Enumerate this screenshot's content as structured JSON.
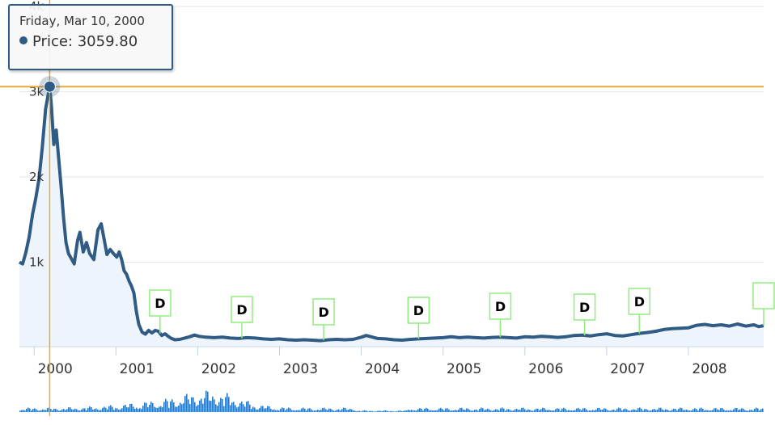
{
  "colors": {
    "line": "#2f5b85",
    "area": "#eef4fb",
    "crosshair": "#e6a93a",
    "flag_border": "#90ed7d",
    "volume": "#2b78c2",
    "grid": "#e6e6e6"
  },
  "tooltip": {
    "date": "Friday, Mar 10, 2000",
    "series_name": "Price",
    "value": "3059.80",
    "separator": ":"
  },
  "chart_data": {
    "type": "line",
    "title": "",
    "series": [
      {
        "name": "Price",
        "x_units": "year",
        "points": [
          [
            1999.82,
            1000
          ],
          [
            1999.86,
            980
          ],
          [
            1999.9,
            1120
          ],
          [
            1999.94,
            1300
          ],
          [
            1999.98,
            1560
          ],
          [
            2000.02,
            1750
          ],
          [
            2000.06,
            1980
          ],
          [
            2000.1,
            2350
          ],
          [
            2000.14,
            2800
          ],
          [
            2000.19,
            3059.8
          ],
          [
            2000.21,
            2850
          ],
          [
            2000.24,
            2380
          ],
          [
            2000.27,
            2550
          ],
          [
            2000.3,
            2220
          ],
          [
            2000.33,
            1880
          ],
          [
            2000.36,
            1520
          ],
          [
            2000.39,
            1230
          ],
          [
            2000.42,
            1100
          ],
          [
            2000.45,
            1050
          ],
          [
            2000.49,
            980
          ],
          [
            2000.53,
            1250
          ],
          [
            2000.56,
            1350
          ],
          [
            2000.6,
            1120
          ],
          [
            2000.64,
            1230
          ],
          [
            2000.68,
            1100
          ],
          [
            2000.73,
            1030
          ],
          [
            2000.78,
            1380
          ],
          [
            2000.82,
            1450
          ],
          [
            2000.86,
            1250
          ],
          [
            2000.89,
            1090
          ],
          [
            2000.93,
            1150
          ],
          [
            2000.97,
            1100
          ],
          [
            2001.01,
            1060
          ],
          [
            2001.04,
            1120
          ],
          [
            2001.07,
            1030
          ],
          [
            2001.1,
            900
          ],
          [
            2001.13,
            860
          ],
          [
            2001.16,
            780
          ],
          [
            2001.19,
            720
          ],
          [
            2001.22,
            640
          ],
          [
            2001.25,
            420
          ],
          [
            2001.28,
            270
          ],
          [
            2001.32,
            180
          ],
          [
            2001.36,
            155
          ],
          [
            2001.4,
            200
          ],
          [
            2001.44,
            170
          ],
          [
            2001.48,
            200
          ],
          [
            2001.52,
            190
          ],
          [
            2001.56,
            140
          ],
          [
            2001.6,
            160
          ],
          [
            2001.64,
            130
          ],
          [
            2001.68,
            105
          ],
          [
            2001.72,
            90
          ],
          [
            2001.78,
            95
          ],
          [
            2001.84,
            110
          ],
          [
            2001.9,
            125
          ],
          [
            2001.96,
            145
          ],
          [
            2002.02,
            130
          ],
          [
            2002.1,
            120
          ],
          [
            2002.2,
            115
          ],
          [
            2002.3,
            120
          ],
          [
            2002.4,
            110
          ],
          [
            2002.5,
            105
          ],
          [
            2002.6,
            115
          ],
          [
            2002.7,
            110
          ],
          [
            2002.8,
            100
          ],
          [
            2002.9,
            95
          ],
          [
            2003.0,
            100
          ],
          [
            2003.1,
            90
          ],
          [
            2003.2,
            85
          ],
          [
            2003.3,
            90
          ],
          [
            2003.4,
            85
          ],
          [
            2003.5,
            80
          ],
          [
            2003.6,
            90
          ],
          [
            2003.7,
            95
          ],
          [
            2003.8,
            90
          ],
          [
            2003.9,
            95
          ],
          [
            2004.0,
            120
          ],
          [
            2004.06,
            140
          ],
          [
            2004.12,
            125
          ],
          [
            2004.2,
            105
          ],
          [
            2004.3,
            100
          ],
          [
            2004.4,
            90
          ],
          [
            2004.5,
            85
          ],
          [
            2004.6,
            95
          ],
          [
            2004.7,
            100
          ],
          [
            2004.8,
            105
          ],
          [
            2004.9,
            110
          ],
          [
            2005.0,
            115
          ],
          [
            2005.1,
            125
          ],
          [
            2005.2,
            115
          ],
          [
            2005.3,
            120
          ],
          [
            2005.4,
            115
          ],
          [
            2005.5,
            110
          ],
          [
            2005.6,
            118
          ],
          [
            2005.7,
            120
          ],
          [
            2005.8,
            115
          ],
          [
            2005.9,
            110
          ],
          [
            2006.0,
            125
          ],
          [
            2006.1,
            120
          ],
          [
            2006.2,
            130
          ],
          [
            2006.3,
            125
          ],
          [
            2006.4,
            118
          ],
          [
            2006.5,
            125
          ],
          [
            2006.6,
            140
          ],
          [
            2006.7,
            145
          ],
          [
            2006.8,
            135
          ],
          [
            2006.9,
            150
          ],
          [
            2007.0,
            160
          ],
          [
            2007.1,
            140
          ],
          [
            2007.2,
            135
          ],
          [
            2007.3,
            150
          ],
          [
            2007.4,
            165
          ],
          [
            2007.5,
            175
          ],
          [
            2007.6,
            190
          ],
          [
            2007.7,
            210
          ],
          [
            2007.8,
            220
          ],
          [
            2007.9,
            225
          ],
          [
            2008.0,
            230
          ],
          [
            2008.1,
            260
          ],
          [
            2008.2,
            270
          ],
          [
            2008.3,
            255
          ],
          [
            2008.4,
            265
          ],
          [
            2008.5,
            250
          ],
          [
            2008.6,
            275
          ],
          [
            2008.7,
            250
          ],
          [
            2008.8,
            265
          ],
          [
            2008.86,
            245
          ],
          [
            2008.92,
            255
          ]
        ]
      }
    ],
    "xlim": [
      1999.82,
      2008.92
    ],
    "ylim": [
      0,
      4000
    ],
    "x_ticks": [
      {
        "value": 2000.0,
        "label": "2000"
      },
      {
        "value": 2001.0,
        "label": "2001"
      },
      {
        "value": 2002.0,
        "label": "2002"
      },
      {
        "value": 2003.0,
        "label": "2003"
      },
      {
        "value": 2004.0,
        "label": "2004"
      },
      {
        "value": 2005.0,
        "label": "2005"
      },
      {
        "value": 2006.0,
        "label": "2006"
      },
      {
        "value": 2007.0,
        "label": "2007"
      },
      {
        "value": 2008.0,
        "label": "2008"
      }
    ],
    "y_ticks": [
      {
        "value": 1000,
        "label": "1k"
      },
      {
        "value": 2000,
        "label": "2k"
      },
      {
        "value": 3000,
        "label": "3k"
      },
      {
        "value": 4000,
        "label": "4k"
      }
    ],
    "flags": [
      {
        "x": 2001.54,
        "label": "D"
      },
      {
        "x": 2002.54,
        "label": "D"
      },
      {
        "x": 2003.54,
        "label": "D"
      },
      {
        "x": 2004.7,
        "label": "D"
      },
      {
        "x": 2005.7,
        "label": "D"
      },
      {
        "x": 2006.73,
        "label": "D"
      },
      {
        "x": 2007.4,
        "label": "D"
      },
      {
        "x": 2008.92,
        "label": ""
      }
    ],
    "crosshair": {
      "x": 2000.19,
      "y": 3059.8
    },
    "volume_shown": true,
    "grid": true
  }
}
